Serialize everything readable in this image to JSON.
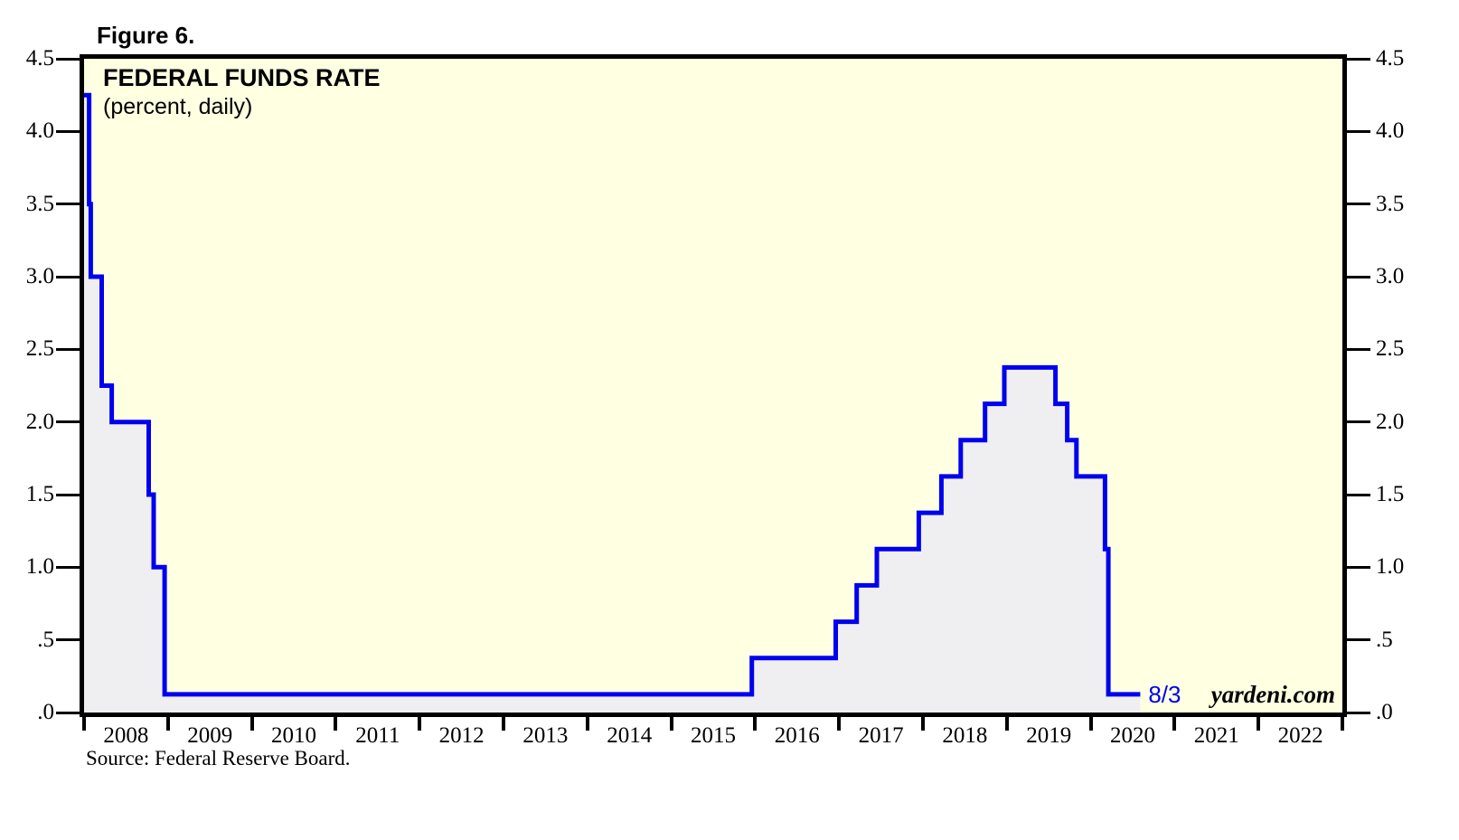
{
  "figure": {
    "label": "Figure 6."
  },
  "chart_data": {
    "type": "line",
    "line_style": "step",
    "title": "FEDERAL FUNDS RATE",
    "subtitle": "(percent, daily)",
    "legend": "none",
    "grid": false,
    "colors": {
      "line": "#0000F0",
      "area_fill": "#EFEFF1",
      "plot_background": "#FFFFE1",
      "axis": "#000000",
      "annotation": "#0000F0"
    },
    "x_axis": {
      "min": 2008,
      "max": 2023,
      "year_labels": [
        "2008",
        "2009",
        "2010",
        "2011",
        "2012",
        "2013",
        "2014",
        "2015",
        "2016",
        "2017",
        "2018",
        "2019",
        "2020",
        "2021",
        "2022"
      ]
    },
    "y_axis": {
      "min": 0,
      "max": 4.5,
      "tick_step": 0.5,
      "tick_labels_top_to_bottom": [
        "4.5",
        "4.0",
        "3.5",
        "3.0",
        "2.5",
        "2.0",
        "1.5",
        "1.0",
        ".5",
        ".0"
      ]
    },
    "series": [
      {
        "name": "federal_funds_rate",
        "points": [
          {
            "x": 2008.0,
            "y": 4.25
          },
          {
            "x": 2008.06,
            "y": 3.5
          },
          {
            "x": 2008.08,
            "y": 3.0
          },
          {
            "x": 2008.21,
            "y": 2.25
          },
          {
            "x": 2008.33,
            "y": 2.0
          },
          {
            "x": 2008.77,
            "y": 1.5
          },
          {
            "x": 2008.83,
            "y": 1.0
          },
          {
            "x": 2008.96,
            "y": 0.125
          },
          {
            "x": 2015.96,
            "y": 0.375
          },
          {
            "x": 2016.96,
            "y": 0.625
          },
          {
            "x": 2017.21,
            "y": 0.875
          },
          {
            "x": 2017.45,
            "y": 1.125
          },
          {
            "x": 2017.95,
            "y": 1.375
          },
          {
            "x": 2018.22,
            "y": 1.625
          },
          {
            "x": 2018.45,
            "y": 1.875
          },
          {
            "x": 2018.74,
            "y": 2.125
          },
          {
            "x": 2018.97,
            "y": 2.375
          },
          {
            "x": 2019.58,
            "y": 2.125
          },
          {
            "x": 2019.72,
            "y": 1.875
          },
          {
            "x": 2019.83,
            "y": 1.625
          },
          {
            "x": 2020.17,
            "y": 1.125
          },
          {
            "x": 2020.21,
            "y": 0.125
          },
          {
            "x": 2020.59,
            "y": 0.125
          }
        ]
      }
    ],
    "end_annotation": {
      "label": "8/3"
    },
    "watermark": "yardeni.com"
  },
  "footer": {
    "source": "Source: Federal Reserve Board."
  }
}
